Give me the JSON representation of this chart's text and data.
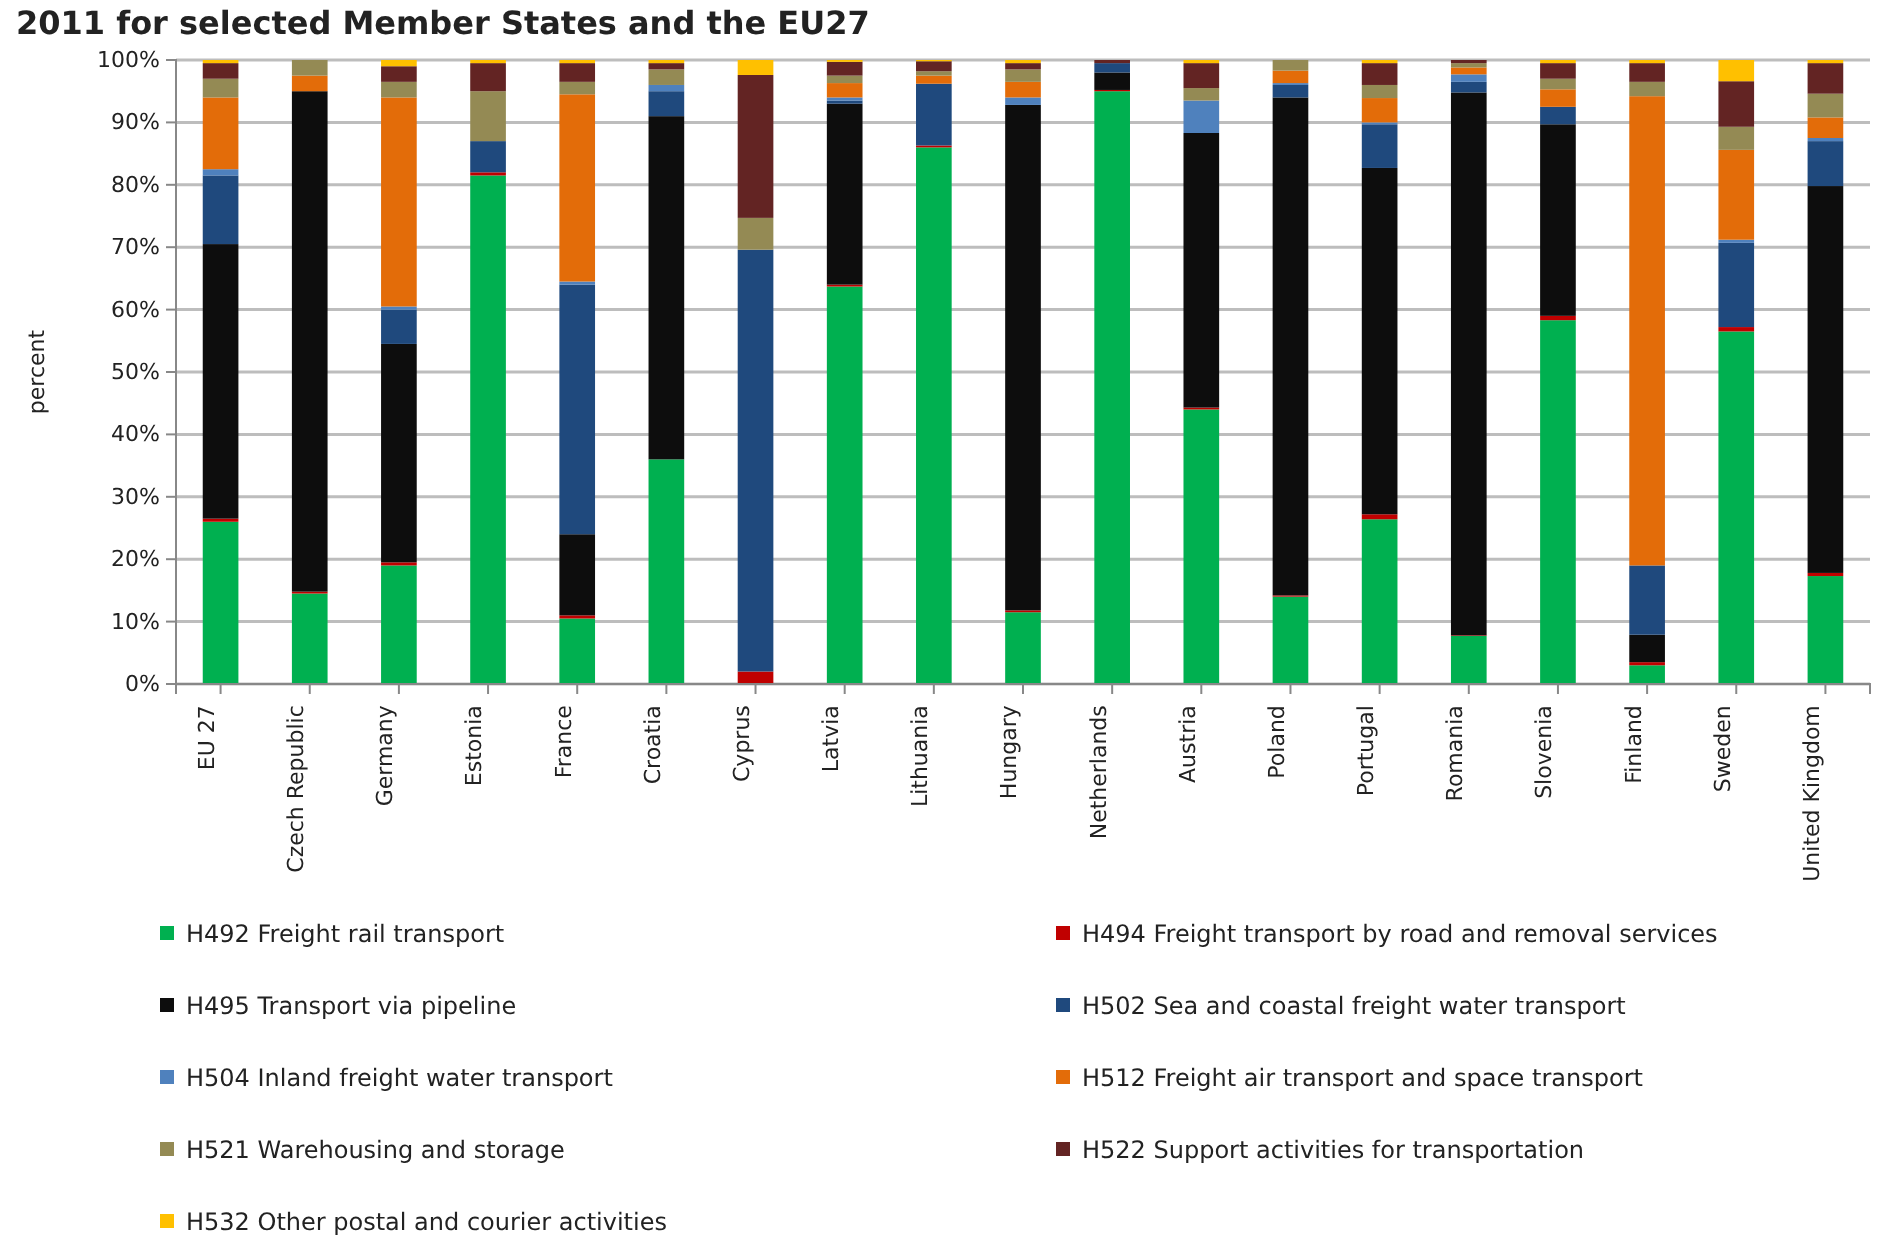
{
  "chart_data": {
    "type": "bar",
    "stacked": true,
    "title": "2011 for selected Member States and the EU27",
    "ylabel": "percent",
    "categories": [
      "EU 27",
      "Czech Republic",
      "Germany",
      "Estonia",
      "France",
      "Croatia",
      "Cyprus",
      "Latvia",
      "Lithuania",
      "Hungary",
      "Netherlands",
      "Austria",
      "Poland",
      "Portugal",
      "Romania",
      "Slovenia",
      "Finland",
      "Sweden",
      "United Kingdom"
    ],
    "ylim": [
      0,
      100
    ],
    "yticks": [
      {
        "value": 0,
        "label": "0%"
      },
      {
        "value": 10,
        "label": "10%"
      },
      {
        "value": 20,
        "label": "20%"
      },
      {
        "value": 30,
        "label": "30%"
      },
      {
        "value": 40,
        "label": "40%"
      },
      {
        "value": 50,
        "label": "50%"
      },
      {
        "value": 60,
        "label": "60%"
      },
      {
        "value": 70,
        "label": "70%"
      },
      {
        "value": 80,
        "label": "80%"
      },
      {
        "value": 90,
        "label": "90%"
      },
      {
        "value": 100,
        "label": "100%"
      }
    ],
    "grid": "y",
    "legend": "bottom",
    "series": [
      {
        "name": "H492 Freight rail transport",
        "color": "#00b050",
        "values": [
          26,
          14.5,
          19,
          81.5,
          10.5,
          36,
          0,
          63.7,
          86,
          11.5,
          95,
          44,
          14,
          26.4,
          7.7,
          58.3,
          3,
          56.5,
          17.3
        ]
      },
      {
        "name": "H494 Freight transport by road and removal services",
        "color": "#c00000",
        "values": [
          0.5,
          0.3,
          0.5,
          0.5,
          0.5,
          0,
          2,
          0.3,
          0.3,
          0.3,
          0.2,
          0.3,
          0.2,
          0.8,
          0.1,
          0.7,
          0.5,
          0.7,
          0.5
        ]
      },
      {
        "name": "H495 Transport via pipeline",
        "color": "#0d0d0d",
        "values": [
          44,
          80.2,
          35,
          0,
          13,
          55,
          0,
          29,
          0,
          81,
          2.8,
          44,
          79.8,
          55.5,
          87,
          30.7,
          4.4,
          0,
          62
        ]
      },
      {
        "name": "H502 Sea and coastal freight water transport",
        "color": "#1f497d",
        "values": [
          11,
          0,
          5.5,
          5,
          40,
          4,
          67.6,
          0.5,
          9.9,
          0,
          1.5,
          0,
          2,
          7,
          1.7,
          2.8,
          11.1,
          13.5,
          7.2
        ]
      },
      {
        "name": "H504 Inland freight water transport",
        "color": "#4f81bd",
        "values": [
          1,
          0,
          0.5,
          0,
          0.5,
          1,
          0,
          0.5,
          0,
          1.2,
          0,
          5.2,
          0.3,
          0.3,
          1.2,
          0,
          0,
          0.5,
          0.5
        ]
      },
      {
        "name": "H512 Freight air transport and space transport",
        "color": "#e36c09",
        "values": [
          11.5,
          2.5,
          33.5,
          0,
          30,
          0,
          0,
          2.3,
          1.3,
          2.5,
          0,
          0,
          2,
          3.9,
          1.1,
          2.8,
          75.2,
          14.4,
          3.3
        ]
      },
      {
        "name": "H521 Warehousing and storage",
        "color": "#948a54",
        "values": [
          3,
          2.5,
          2.5,
          8,
          2,
          2.5,
          5.1,
          1.2,
          0.7,
          2,
          0,
          2,
          1.7,
          2.1,
          0.7,
          1.7,
          2.3,
          3.7,
          3.8
        ]
      },
      {
        "name": "H522 Support activities for transportation",
        "color": "#632423",
        "values": [
          2.5,
          0,
          2.5,
          4.5,
          3,
          1,
          22.9,
          2.2,
          1.6,
          1,
          0.5,
          4,
          0,
          3.5,
          0.5,
          2.5,
          3,
          7.3,
          4.9
        ]
      },
      {
        "name": "H532 Other postal and courier activities",
        "color": "#ffc000",
        "values": [
          0.5,
          0,
          1,
          0.5,
          0.5,
          0.5,
          2.4,
          0.3,
          0.2,
          0.5,
          0,
          0.5,
          0,
          0.5,
          0,
          0.5,
          0.5,
          3.4,
          0.5
        ]
      }
    ]
  }
}
